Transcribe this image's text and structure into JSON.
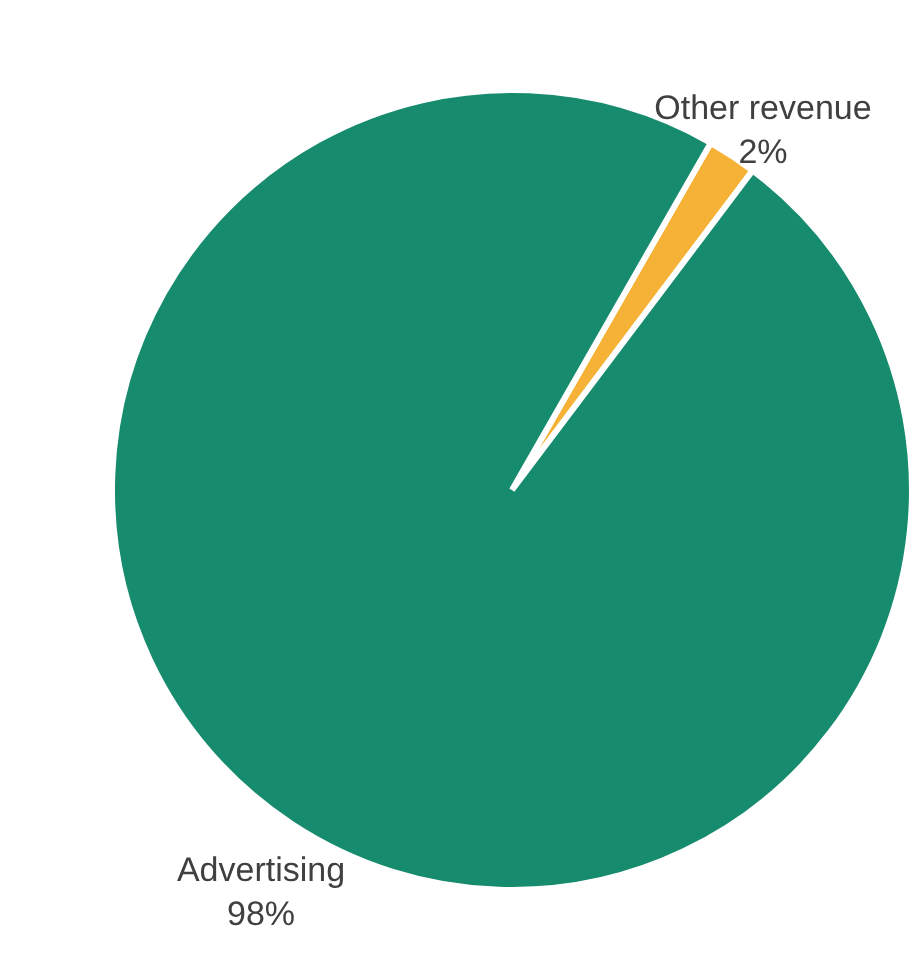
{
  "chart_data": {
    "type": "pie",
    "categories": [
      "Other revenue",
      "Advertising"
    ],
    "values": [
      2,
      98
    ],
    "colors": [
      "#f5b236",
      "#168b6e"
    ],
    "value_labels": [
      "2%",
      "98%"
    ]
  }
}
